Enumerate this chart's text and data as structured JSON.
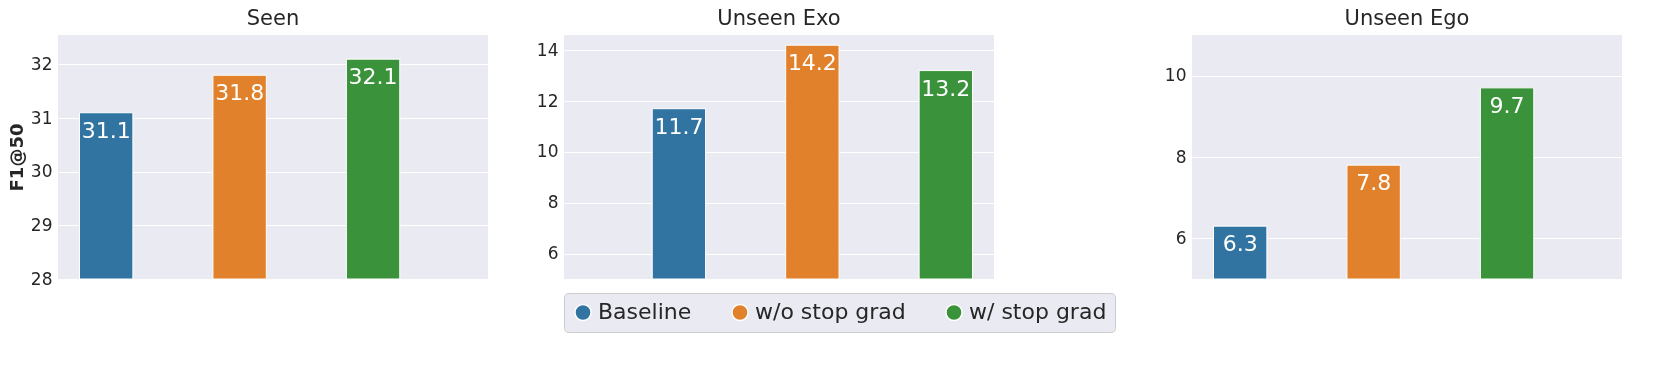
{
  "chart_data": [
    {
      "type": "bar",
      "title": "Seen",
      "ylabel": "F1@50",
      "categories": [
        null
      ],
      "ylim": [
        28,
        32.55
      ],
      "yticks": [
        28,
        29,
        30,
        31,
        32
      ],
      "grid": "y",
      "tick_labels": "y",
      "data_labels": true,
      "legend": false,
      "series": [
        {
          "color": "#3274a1",
          "values": [
            31.1
          ]
        },
        {
          "color": "#e1812c",
          "values": [
            31.8
          ]
        },
        {
          "color": "#3a923a",
          "values": [
            32.1
          ]
        }
      ]
    },
    {
      "type": "bar",
      "title": "Unseen Exo",
      "categories": [
        null
      ],
      "ylim": [
        5,
        14.6
      ],
      "yticks": [
        6,
        8,
        10,
        12,
        14
      ],
      "grid": "y",
      "tick_labels": "y",
      "data_labels": true,
      "legend": "bottom",
      "series": [
        {
          "name": "Baseline",
          "color": "#3274a1",
          "values": [
            11.7
          ]
        },
        {
          "name": "w/o stop grad",
          "color": "#e1812c",
          "values": [
            14.2
          ]
        },
        {
          "name": "w/ stop grad",
          "color": "#3a923a",
          "values": [
            13.2
          ]
        }
      ]
    },
    {
      "type": "bar",
      "title": "Unseen Ego",
      "categories": [
        null
      ],
      "ylim": [
        5,
        11
      ],
      "yticks": [
        6,
        8,
        10
      ],
      "grid": "y",
      "tick_labels": "y",
      "data_labels": true,
      "legend": false,
      "series": [
        {
          "color": "#3274a1",
          "values": [
            6.3
          ]
        },
        {
          "color": "#e1812c",
          "values": [
            7.8
          ]
        },
        {
          "color": "#3a923a",
          "values": [
            9.7
          ]
        }
      ]
    }
  ]
}
